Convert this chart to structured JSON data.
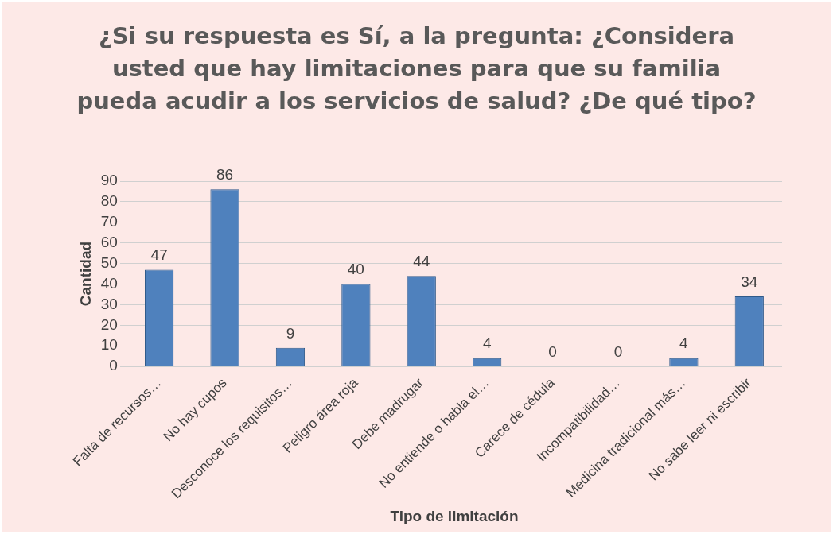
{
  "chart_data": {
    "type": "bar",
    "title": "¿Si su respuesta es Sí, a la pregunta: ¿Considera usted que hay limitaciones para que su familia pueda acudir a los servicios de salud? ¿De qué tipo?",
    "xlabel": "Tipo de limitación",
    "ylabel": "Cantidad",
    "categories": [
      "Falta de recursos…",
      "No hay cupos",
      "Desconoce los requisitos…",
      "Peligro área roja",
      "Debe madrugar",
      "No entiende o habla el…",
      "Carece de cédula",
      "Incompatibilidad…",
      "Medicina tradicional más…",
      "No sabe leer ni escribir"
    ],
    "values": [
      47,
      86,
      9,
      40,
      44,
      4,
      0,
      0,
      4,
      34
    ],
    "color": "#4f81bd",
    "ylim": [
      0,
      90
    ],
    "yticks": [
      0,
      10,
      20,
      30,
      40,
      50,
      60,
      70,
      80,
      90
    ],
    "grid": "y",
    "data_labels": true
  }
}
